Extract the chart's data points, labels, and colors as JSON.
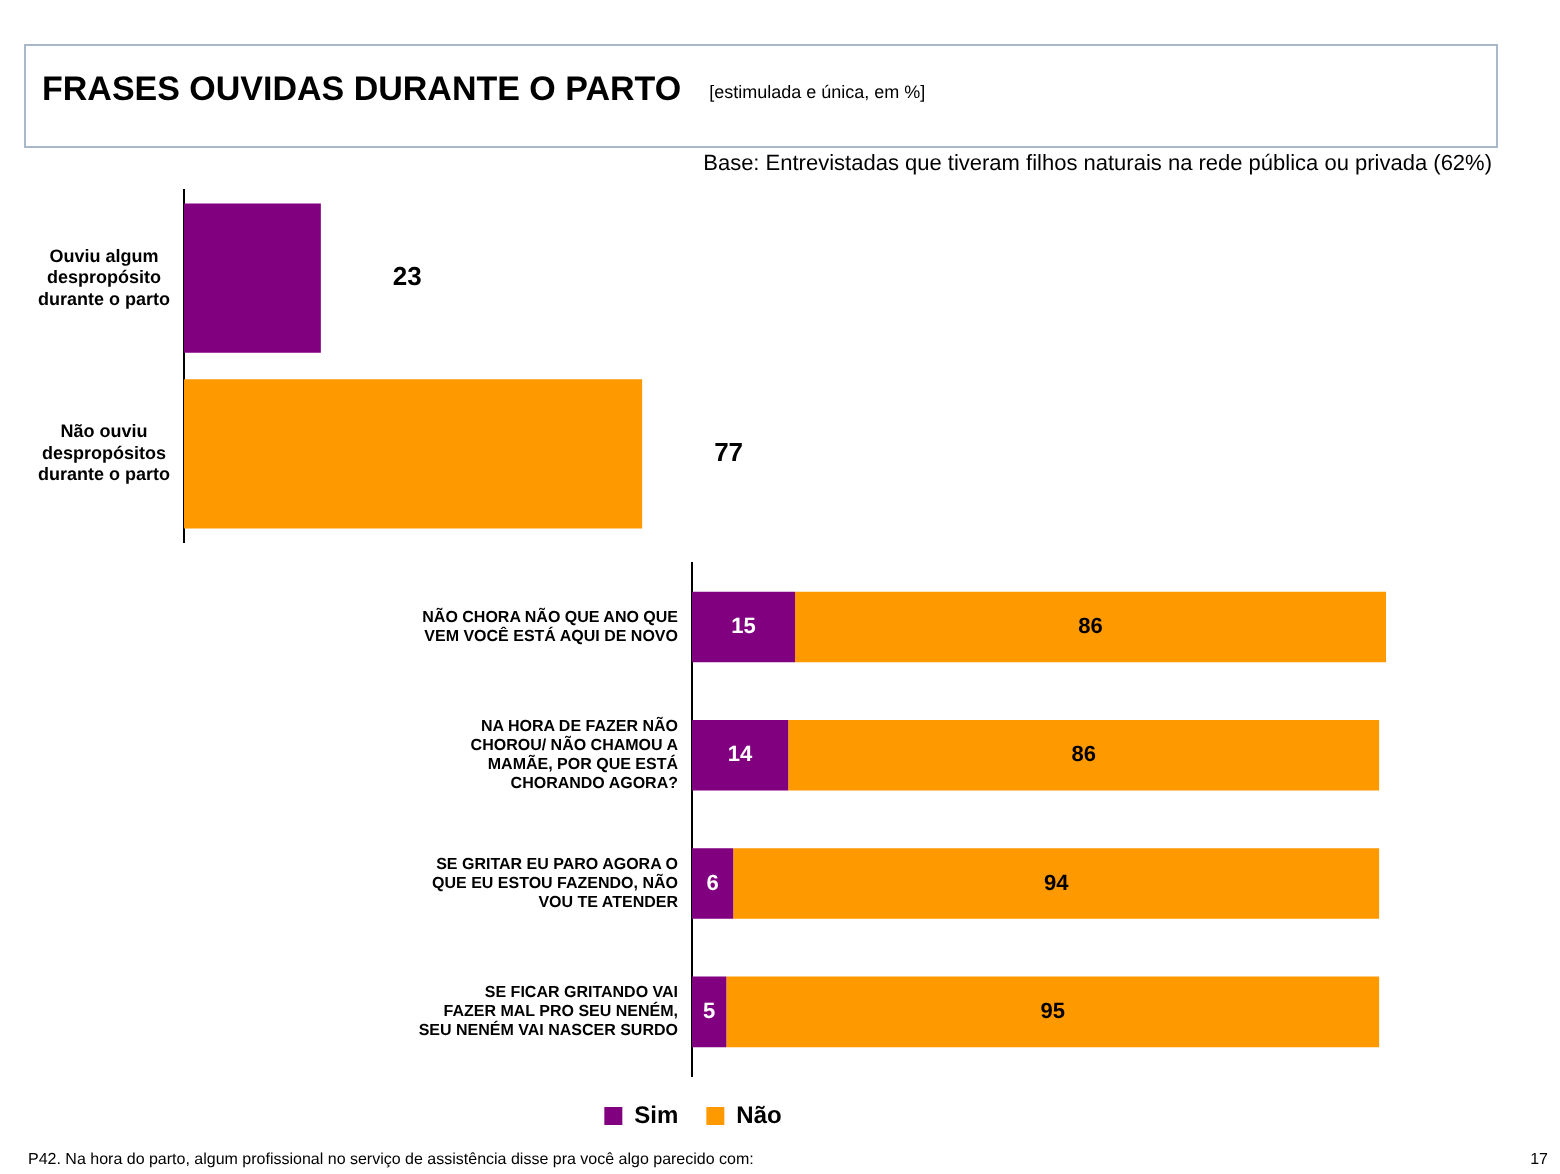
{
  "chart_data": [
    {
      "type": "other",
      "title": "FRASES OUVIDAS DURANTE O PARTO",
      "subtitle": "[estimulada e única, em %]"
    },
    {
      "type": "bar",
      "orientation": "horizontal",
      "annotations": [
        "Base: Entrevistadas que tiveram filhos naturais na rede pública ou privada (62%)"
      ],
      "categories": [
        "Ouviu algum despropósito durante o parto",
        "Não ouviu despropósitos durante o parto"
      ],
      "values": [
        23,
        77
      ],
      "colors": [
        "#800080",
        "#ff9900"
      ],
      "tick_labels": "y",
      "data_labels": true
    },
    {
      "type": "bar",
      "orientation": "horizontal",
      "stacked": true,
      "categories": [
        "NÃO CHORA NÃO QUE ANO QUE VEM VOCÊ ESTÁ AQUI DE NOVO",
        "NA HORA DE FAZER NÃO CHOROU/ NÃO CHAMOU A MAMÃE, POR QUE ESTÁ CHORANDO AGORA?",
        "SE GRITAR EU PARO AGORA O QUE EU ESTOU FAZENDO, NÃO VOU TE ATENDER",
        "SE FICAR GRITANDO VAI FAZER MAL PRO SEU NENÉM, SEU NENÉM VAI NASCER SURDO"
      ],
      "series": [
        {
          "name": "Sim",
          "color": "#800080",
          "values": [
            15,
            14,
            6,
            5
          ]
        },
        {
          "name": "Não",
          "color": "#ff9900",
          "values": [
            86,
            86,
            94,
            95
          ]
        }
      ],
      "xlim": [
        0,
        101
      ],
      "tick_labels": "y",
      "data_labels": true,
      "legend": "bottom",
      "annotations": [
        "P42. Na hora do parto, algum profissional no serviço de assistência disse pra você algo parecido com:",
        "17"
      ]
    }
  ]
}
